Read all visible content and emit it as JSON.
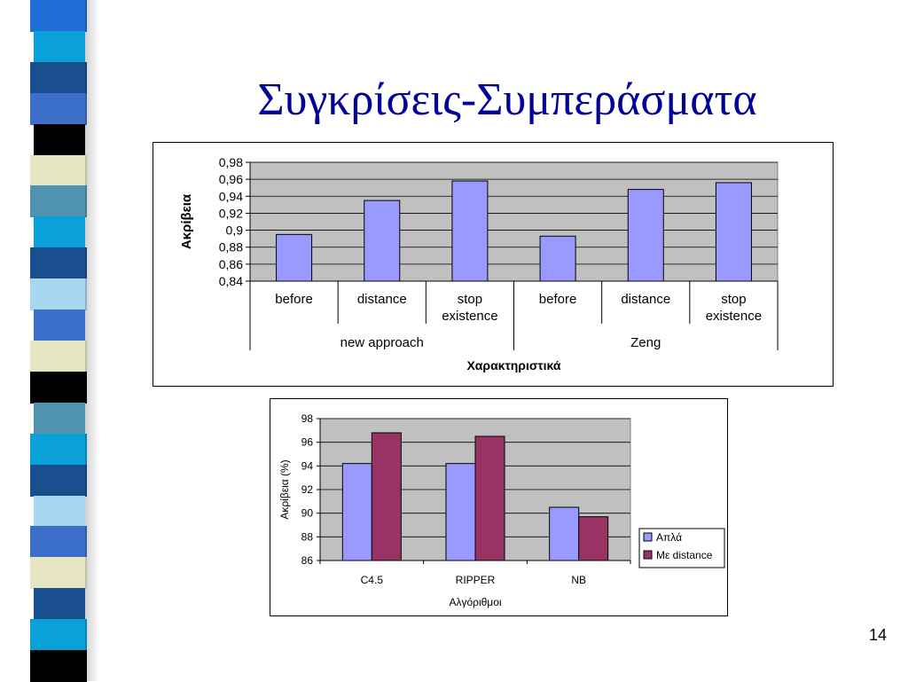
{
  "slide": {
    "title": "Συγκρίσεις-Συμπεράσματα",
    "page_number": "14",
    "stripe_colors": [
      "#1f6fd6",
      "#0aa0d8",
      "#1a4f8f",
      "#3b6fc9",
      "#000000",
      "#e6e6c0",
      "#4f93b0",
      "#0aa0d8",
      "#1a4f8f",
      "#a8d8f0",
      "#3b6fc9",
      "#e6e6c0",
      "#000000",
      "#4f93b0",
      "#0aa0d8",
      "#1a4f8f",
      "#a8d8f0",
      "#3b6fc9",
      "#e6e6c0",
      "#1a4f8f",
      "#0aa0d8",
      "#000000"
    ]
  },
  "chart_data": [
    {
      "type": "bar",
      "title": "",
      "xlabel": "Χαρακτηριστικά",
      "ylabel": "Ακρίβεια",
      "categories": [
        "before",
        "distance",
        "stop existence",
        "before",
        "distance",
        "stop existence"
      ],
      "category_lines": [
        [
          "before"
        ],
        [
          "distance"
        ],
        [
          "stop",
          "existence"
        ],
        [
          "before"
        ],
        [
          "distance"
        ],
        [
          "stop",
          "existence"
        ]
      ],
      "groups": [
        {
          "label": "new approach",
          "span": [
            0,
            2
          ]
        },
        {
          "label": "Zeng",
          "span": [
            3,
            5
          ]
        }
      ],
      "series": [
        {
          "values": [
            0.895,
            0.935,
            0.958,
            0.893,
            0.948,
            0.956
          ],
          "color": "#9999ff"
        }
      ],
      "ylim": [
        0.84,
        0.98
      ],
      "yticks": [
        0.84,
        0.86,
        0.88,
        0.9,
        0.92,
        0.94,
        0.96,
        0.98
      ],
      "ytick_labels": [
        "0,84",
        "0,86",
        "0,88",
        "0,9",
        "0,92",
        "0,94",
        "0,96",
        "0,98"
      ],
      "grid": true,
      "plot_background": "#c0c0c0",
      "legend": "none"
    },
    {
      "type": "bar",
      "title": "",
      "xlabel": "Αλγόριθμοι",
      "ylabel": "Ακρίβεια (%)",
      "categories": [
        "C4.5",
        "RIPPER",
        "NB"
      ],
      "series": [
        {
          "name": "Απλά",
          "values": [
            94.2,
            94.2,
            90.5
          ],
          "color": "#9999ff"
        },
        {
          "name": "Με distance",
          "values": [
            96.8,
            96.5,
            89.7
          ],
          "color": "#993366"
        }
      ],
      "ylim": [
        86,
        98
      ],
      "yticks": [
        86,
        88,
        90,
        92,
        94,
        96,
        98
      ],
      "ytick_labels": [
        "86",
        "88",
        "90",
        "92",
        "94",
        "96",
        "98"
      ],
      "grid": true,
      "plot_background": "#c0c0c0",
      "legend": "right"
    }
  ]
}
